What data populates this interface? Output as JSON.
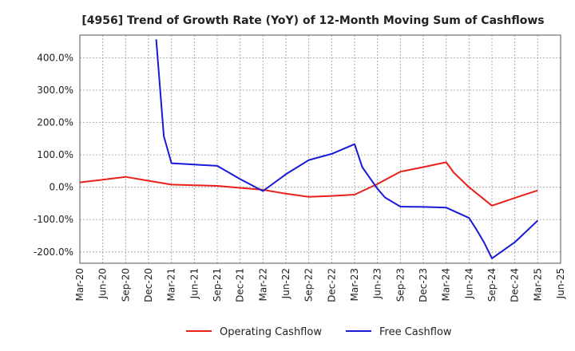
{
  "chart_data": {
    "type": "line",
    "title": "[4956]  Trend of Growth Rate (YoY) of 12-Month Moving Sum of Cashflows",
    "xlabel": "",
    "ylabel": "",
    "x_ticks": [
      "Mar-20",
      "Jun-20",
      "Sep-20",
      "Dec-20",
      "Mar-21",
      "Jun-21",
      "Sep-21",
      "Dec-21",
      "Mar-22",
      "Jun-22",
      "Sep-22",
      "Dec-22",
      "Mar-23",
      "Jun-23",
      "Sep-23",
      "Dec-23",
      "Mar-24",
      "Jun-24",
      "Sep-24",
      "Dec-24",
      "Mar-25",
      "Jun-25"
    ],
    "y_ticks": [
      -200,
      -100,
      0,
      100,
      200,
      300,
      400
    ],
    "y_tick_labels": [
      "-200.0%",
      "-100.0%",
      "0.0%",
      "100.0%",
      "200.0%",
      "300.0%",
      "400.0%"
    ],
    "ylim": [
      -235,
      470
    ],
    "grid": true,
    "legend_position": "bottom-center",
    "series": [
      {
        "name": "Operating Cashflow",
        "color": "#e8201a",
        "points": [
          [
            "Mar-20",
            15
          ],
          [
            "Jun-20",
            23
          ],
          [
            "Sep-20",
            32
          ],
          [
            "Dec-20",
            20
          ],
          [
            "Mar-21",
            8
          ],
          [
            "Jun-21",
            6
          ],
          [
            "Sep-21",
            4
          ],
          [
            "Dec-21",
            -2
          ],
          [
            "Mar-22",
            -8
          ],
          [
            "Jun-22",
            -20
          ],
          [
            "Sep-22",
            -30
          ],
          [
            "Dec-22",
            -27
          ],
          [
            "Mar-23",
            -23
          ],
          [
            "Jun-23",
            10
          ],
          [
            "Sep-23",
            48
          ],
          [
            "Dec-23",
            62
          ],
          [
            "Mar-24",
            77
          ],
          [
            "Apr-24",
            45
          ],
          [
            "Jun-24",
            0
          ],
          [
            "Sep-24",
            -57
          ],
          [
            "Dec-24",
            -33
          ],
          [
            "Mar-25",
            -10
          ]
        ]
      },
      {
        "name": "Free Cashflow",
        "color": "#1a1ad6",
        "points": [
          [
            "Jan-21",
            457
          ],
          [
            "Feb-21",
            158
          ],
          [
            "Mar-21",
            74
          ],
          [
            "Jun-21",
            70
          ],
          [
            "Sep-21",
            66
          ],
          [
            "Dec-21",
            25
          ],
          [
            "Mar-22",
            -12
          ],
          [
            "Jun-22",
            40
          ],
          [
            "Sep-22",
            84
          ],
          [
            "Dec-22",
            103
          ],
          [
            "Mar-23",
            133
          ],
          [
            "Apr-23",
            62
          ],
          [
            "Jun-23",
            -5
          ],
          [
            "Jul-23",
            -32
          ],
          [
            "Sep-23",
            -60
          ],
          [
            "Dec-23",
            -61
          ],
          [
            "Mar-24",
            -63
          ],
          [
            "Jun-24",
            -95
          ],
          [
            "Jul-24",
            -132
          ],
          [
            "Aug-24",
            -172
          ],
          [
            "Sep-24",
            -220
          ],
          [
            "Dec-24",
            -170
          ],
          [
            "Mar-25",
            -103
          ]
        ]
      }
    ]
  }
}
